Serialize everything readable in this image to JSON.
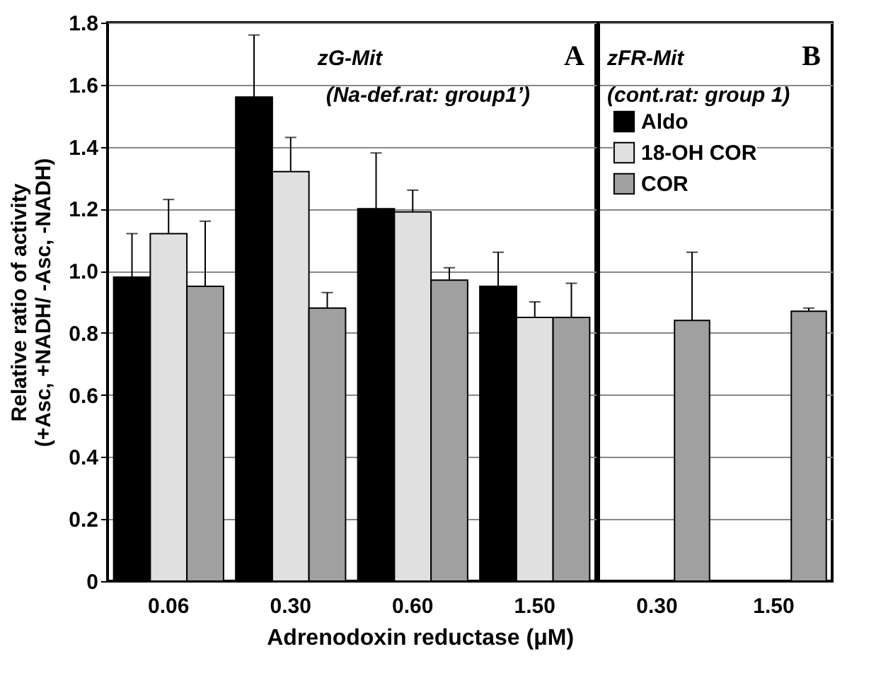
{
  "chart_data": [
    {
      "type": "bar",
      "ylabel": "Relative ratio of activity\n(+Asc, +NADH/ -Asc, -NADH)",
      "xlabel": "Adrenodoxin reductase (μM)",
      "categories": [
        "0.06",
        "0.30",
        "0.60",
        "1.50"
      ],
      "ylim": [
        0,
        1.8
      ],
      "yticks": [
        0,
        0.2,
        0.4,
        0.6,
        0.8,
        {
          "value": 1,
          "label": "1.0"
        },
        1.2,
        1.4,
        1.6,
        1.8
      ],
      "grid": "y",
      "annotations": [
        "A",
        "zG-Mit",
        "(Na-def.rat: group1’)"
      ],
      "series": [
        {
          "color": "#000000",
          "values": [
            0.98,
            1.56,
            1.2,
            0.95
          ],
          "errors": [
            [
              0.98,
              1.12
            ],
            [
              1.56,
              1.76
            ],
            [
              1.2,
              1.38
            ],
            [
              0.95,
              1.06
            ]
          ]
        },
        {
          "color": "#e0e0e0",
          "values": [
            1.12,
            1.32,
            1.19,
            0.85
          ],
          "errors": [
            [
              1.12,
              1.23
            ],
            [
              1.32,
              1.43
            ],
            [
              1.19,
              1.26
            ],
            [
              0.85,
              0.9
            ]
          ]
        },
        {
          "color": "#a0a0a0",
          "values": [
            0.95,
            0.88,
            0.97,
            0.85
          ],
          "errors": [
            [
              0.95,
              1.16
            ],
            [
              0.88,
              0.93
            ],
            [
              0.97,
              1.01
            ],
            [
              0.85,
              0.96
            ]
          ]
        }
      ]
    },
    {
      "type": "bar",
      "categories": [
        "0.30",
        "1.50"
      ],
      "ylim": [
        0,
        1.8
      ],
      "yticks": [
        0,
        0.2,
        0.4,
        0.6,
        0.8,
        1,
        1.2,
        1.4,
        1.6,
        1.8
      ],
      "grid": "y",
      "tick_labels": "x",
      "legend": "top left",
      "annotations": [
        "B",
        "zFR-Mit",
        "(cont.rat: group 1)"
      ],
      "series": [
        {
          "name": "Aldo",
          "color": "#000000",
          "values": [
            null,
            null
          ]
        },
        {
          "name": "18-OH COR",
          "color": "#e0e0e0",
          "values": [
            null,
            null
          ]
        },
        {
          "name": "COR",
          "color": "#a0a0a0",
          "values": [
            0.84,
            0.87
          ],
          "errors": [
            [
              0.84,
              1.06
            ],
            [
              0.87,
              0.88
            ]
          ]
        }
      ]
    }
  ]
}
